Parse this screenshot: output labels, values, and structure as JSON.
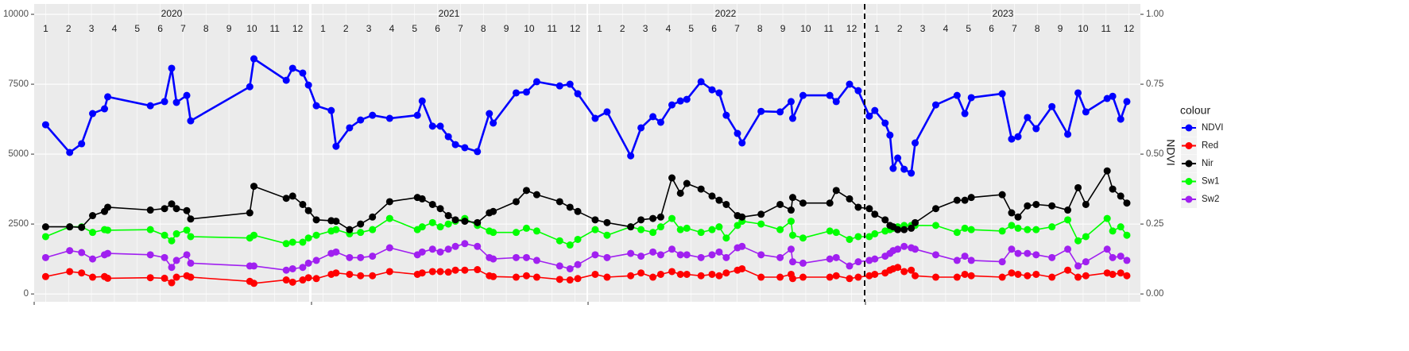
{
  "chart_data": {
    "type": "line",
    "facets": [
      "2020",
      "2021",
      "2022",
      "2023"
    ],
    "x": [
      1.0,
      2.05,
      2.57,
      3.05,
      3.57,
      3.71,
      5.57,
      6.19,
      6.5,
      6.71,
      7.16,
      7.33,
      9.91,
      10.09,
      11.5,
      11.78,
      12.22,
      12.47,
      12.71,
      13.36,
      13.57,
      14.16,
      14.64,
      15.16,
      15.91,
      17.12,
      17.33,
      17.78,
      18.12,
      18.47,
      18.78,
      19.19,
      19.74,
      20.26,
      20.43,
      21.43,
      21.88,
      22.33,
      23.33,
      23.78,
      24.12,
      24.81,
      25.33,
      26.36,
      26.81,
      27.33,
      27.67,
      28.16,
      28.53,
      28.81,
      29.43,
      29.91,
      30.22,
      30.53,
      31.02,
      31.22,
      32.05,
      32.88,
      33.36,
      33.43,
      33.88,
      35.05,
      35.33,
      35.91,
      36.29,
      36.67,
      36.91,
      37.36,
      37.57,
      37.71,
      37.91,
      38.19,
      38.5,
      38.67,
      39.57,
      40.5,
      40.84,
      41.12,
      42.47,
      42.88,
      43.16,
      43.57,
      43.95,
      44.64,
      45.33,
      45.78,
      46.12,
      47.05,
      47.29,
      47.64,
      47.91
    ],
    "xlim": [
      0.5,
      48.5
    ],
    "x_breaks": [
      0.5,
      12.5,
      24.5,
      36.5
    ],
    "xticks": [
      {
        "value": 1,
        "label": "1"
      },
      {
        "value": 2,
        "label": "2"
      },
      {
        "value": 3,
        "label": "3"
      },
      {
        "value": 4,
        "label": "4"
      },
      {
        "value": 5,
        "label": "5"
      },
      {
        "value": 6,
        "label": "6"
      },
      {
        "value": 7,
        "label": "7"
      },
      {
        "value": 8,
        "label": "8"
      },
      {
        "value": 9,
        "label": "9"
      },
      {
        "value": 10,
        "label": "10"
      },
      {
        "value": 11,
        "label": "11"
      },
      {
        "value": 12,
        "label": "12"
      },
      {
        "value": 13,
        "label": "1"
      },
      {
        "value": 14,
        "label": "2"
      },
      {
        "value": 15,
        "label": "3"
      },
      {
        "value": 16,
        "label": "4"
      },
      {
        "value": 17,
        "label": "5"
      },
      {
        "value": 18,
        "label": "6"
      },
      {
        "value": 19,
        "label": "7"
      },
      {
        "value": 20,
        "label": "8"
      },
      {
        "value": 21,
        "label": "9"
      },
      {
        "value": 22,
        "label": "10"
      },
      {
        "value": 23,
        "label": "11"
      },
      {
        "value": 24,
        "label": "12"
      },
      {
        "value": 25,
        "label": "1"
      },
      {
        "value": 26,
        "label": "2"
      },
      {
        "value": 27,
        "label": "3"
      },
      {
        "value": 28,
        "label": "4"
      },
      {
        "value": 29,
        "label": "5"
      },
      {
        "value": 30,
        "label": "6"
      },
      {
        "value": 31,
        "label": "7"
      },
      {
        "value": 32,
        "label": "8"
      },
      {
        "value": 33,
        "label": "9"
      },
      {
        "value": 34,
        "label": "10"
      },
      {
        "value": 35,
        "label": "11"
      },
      {
        "value": 36,
        "label": "12"
      },
      {
        "value": 37,
        "label": "1"
      },
      {
        "value": 38,
        "label": "2"
      },
      {
        "value": 39,
        "label": "3"
      },
      {
        "value": 40,
        "label": "4"
      },
      {
        "value": 41,
        "label": "5"
      },
      {
        "value": 42,
        "label": "6"
      },
      {
        "value": 43,
        "label": "7"
      },
      {
        "value": 44,
        "label": "8"
      },
      {
        "value": 45,
        "label": "9"
      },
      {
        "value": 46,
        "label": "10"
      },
      {
        "value": 47,
        "label": "11"
      },
      {
        "value": 48,
        "label": "12"
      }
    ],
    "vline": 36.5,
    "ylim": [
      -280,
      10370
    ],
    "yticks": [
      0,
      2500,
      5000,
      7500,
      10000
    ],
    "y2lim": [
      -0.028,
      1.037
    ],
    "y2ticks": [
      {
        "value": 0,
        "label": "0.00"
      },
      {
        "value": 0.25,
        "label": "0.25"
      },
      {
        "value": 0.5,
        "label": "0.50"
      },
      {
        "value": 0.75,
        "label": "0.75"
      },
      {
        "value": 1,
        "label": "1.00"
      }
    ],
    "y2_label": "NDVI",
    "legend_title": "colour",
    "legend": "right",
    "grid": true,
    "series": [
      {
        "name": "NDVI",
        "color": "#0000ff",
        "axis": "y2",
        "values": [
          0.605,
          0.506,
          0.537,
          0.645,
          0.662,
          0.705,
          0.673,
          0.688,
          0.807,
          0.685,
          0.71,
          0.619,
          0.741,
          0.841,
          0.764,
          0.807,
          0.79,
          0.747,
          0.673,
          0.656,
          0.528,
          0.594,
          0.622,
          0.639,
          0.628,
          0.639,
          0.69,
          0.6,
          0.6,
          0.5625,
          0.534,
          0.523,
          0.509,
          0.645,
          0.611,
          0.719,
          0.722,
          0.759,
          0.744,
          0.75,
          0.716,
          0.628,
          0.651,
          0.494,
          0.594,
          0.634,
          0.614,
          0.676,
          0.69,
          0.696,
          0.759,
          0.73,
          0.719,
          0.639,
          0.574,
          0.54,
          0.653,
          0.651,
          0.688,
          0.628,
          0.71,
          0.71,
          0.688,
          0.75,
          0.727,
          0.636,
          0.656,
          0.611,
          0.568,
          0.449,
          0.486,
          0.446,
          0.432,
          0.54,
          0.676,
          0.71,
          0.645,
          0.702,
          0.716,
          0.554,
          0.5625,
          0.631,
          0.591,
          0.67,
          0.571,
          0.719,
          0.651,
          0.699,
          0.707,
          0.625,
          0.688
        ]
      },
      {
        "name": "Red",
        "color": "#ff0000",
        "values": [
          620,
          800,
          750,
          600,
          620,
          560,
          580,
          560,
          400,
          600,
          650,
          600,
          450,
          380,
          500,
          420,
          500,
          580,
          550,
          700,
          750,
          700,
          650,
          650,
          800,
          700,
          750,
          800,
          800,
          780,
          850,
          850,
          870,
          650,
          620,
          600,
          650,
          600,
          520,
          500,
          550,
          700,
          600,
          650,
          750,
          600,
          700,
          800,
          700,
          700,
          650,
          700,
          650,
          750,
          850,
          900,
          600,
          600,
          700,
          550,
          600,
          600,
          650,
          550,
          600,
          650,
          700,
          750,
          850,
          900,
          950,
          800,
          850,
          650,
          600,
          600,
          700,
          650,
          600,
          750,
          700,
          650,
          700,
          600,
          850,
          600,
          650,
          750,
          700,
          750,
          650
        ]
      },
      {
        "name": "Nir",
        "color": "#000000",
        "values": [
          2400,
          2400,
          2380,
          2800,
          2950,
          3100,
          3000,
          3050,
          3220,
          3050,
          2980,
          2680,
          2900,
          3850,
          3420,
          3500,
          3200,
          2980,
          2650,
          2620,
          2600,
          2300,
          2500,
          2750,
          3300,
          3450,
          3400,
          3200,
          3050,
          2800,
          2650,
          2600,
          2550,
          2900,
          2950,
          3300,
          3700,
          3550,
          3300,
          3100,
          2950,
          2650,
          2550,
          2400,
          2650,
          2700,
          2750,
          4150,
          3600,
          3950,
          3750,
          3500,
          3350,
          3200,
          2800,
          2750,
          2850,
          3200,
          3000,
          3450,
          3250,
          3250,
          3700,
          3400,
          3100,
          3050,
          2850,
          2650,
          2450,
          2400,
          2300,
          2300,
          2350,
          2550,
          3050,
          3350,
          3350,
          3450,
          3550,
          2900,
          2750,
          3150,
          3200,
          3150,
          3000,
          3800,
          3200,
          4400,
          3750,
          3500,
          3250
        ]
      },
      {
        "name": "Sw1",
        "color": "#00ff00",
        "values": [
          2050,
          2400,
          2400,
          2200,
          2300,
          2280,
          2300,
          2100,
          1900,
          2150,
          2280,
          2050,
          2000,
          2100,
          1800,
          1850,
          1850,
          2000,
          2100,
          2250,
          2300,
          2150,
          2200,
          2300,
          2700,
          2300,
          2400,
          2550,
          2400,
          2500,
          2600,
          2700,
          2450,
          2250,
          2200,
          2200,
          2350,
          2250,
          1900,
          1750,
          1950,
          2300,
          2100,
          2400,
          2300,
          2200,
          2400,
          2700,
          2300,
          2350,
          2200,
          2300,
          2400,
          2000,
          2450,
          2600,
          2500,
          2300,
          2600,
          2100,
          2000,
          2250,
          2200,
          1950,
          2050,
          2050,
          2150,
          2250,
          2300,
          2350,
          2400,
          2450,
          2450,
          2450,
          2450,
          2200,
          2350,
          2300,
          2250,
          2450,
          2350,
          2300,
          2300,
          2400,
          2650,
          1900,
          2050,
          2700,
          2250,
          2400,
          2100
        ]
      },
      {
        "name": "Sw2",
        "color": "#a020f0",
        "values": [
          1300,
          1550,
          1480,
          1250,
          1400,
          1450,
          1400,
          1300,
          950,
          1200,
          1400,
          1100,
          1000,
          1000,
          850,
          900,
          950,
          1100,
          1200,
          1450,
          1500,
          1300,
          1300,
          1350,
          1650,
          1400,
          1500,
          1600,
          1500,
          1600,
          1700,
          1800,
          1700,
          1300,
          1250,
          1300,
          1300,
          1200,
          1000,
          900,
          1050,
          1400,
          1300,
          1450,
          1350,
          1500,
          1400,
          1600,
          1400,
          1400,
          1300,
          1400,
          1500,
          1300,
          1650,
          1700,
          1400,
          1300,
          1600,
          1150,
          1100,
          1250,
          1300,
          1000,
          1150,
          1200,
          1250,
          1350,
          1450,
          1550,
          1600,
          1700,
          1650,
          1600,
          1400,
          1200,
          1350,
          1200,
          1150,
          1600,
          1450,
          1450,
          1400,
          1300,
          1600,
          1000,
          1150,
          1600,
          1300,
          1350,
          1200
        ]
      }
    ]
  }
}
